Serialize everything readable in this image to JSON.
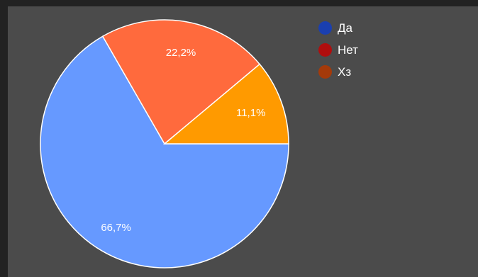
{
  "chart_data": {
    "type": "pie",
    "categories": [
      "Да",
      "Нет",
      "Хз"
    ],
    "values": [
      66.7,
      22.2,
      11.1
    ],
    "data_labels": [
      "66,7%",
      "22,2%",
      "11,1%"
    ],
    "slice_colors": [
      "#6699ff",
      "#ff6a3d",
      "#ff9a00"
    ],
    "legend_colors": [
      "#1a3fb0",
      "#b00e0e",
      "#a53a0a"
    ],
    "legend_position": "top-right",
    "background": "#4b4b4b",
    "start_angle_note": "largest slice starts at 3 o'clock going clockwise"
  },
  "legend": {
    "items": [
      {
        "label": "Да"
      },
      {
        "label": "Нет"
      },
      {
        "label": "Хз"
      }
    ]
  }
}
